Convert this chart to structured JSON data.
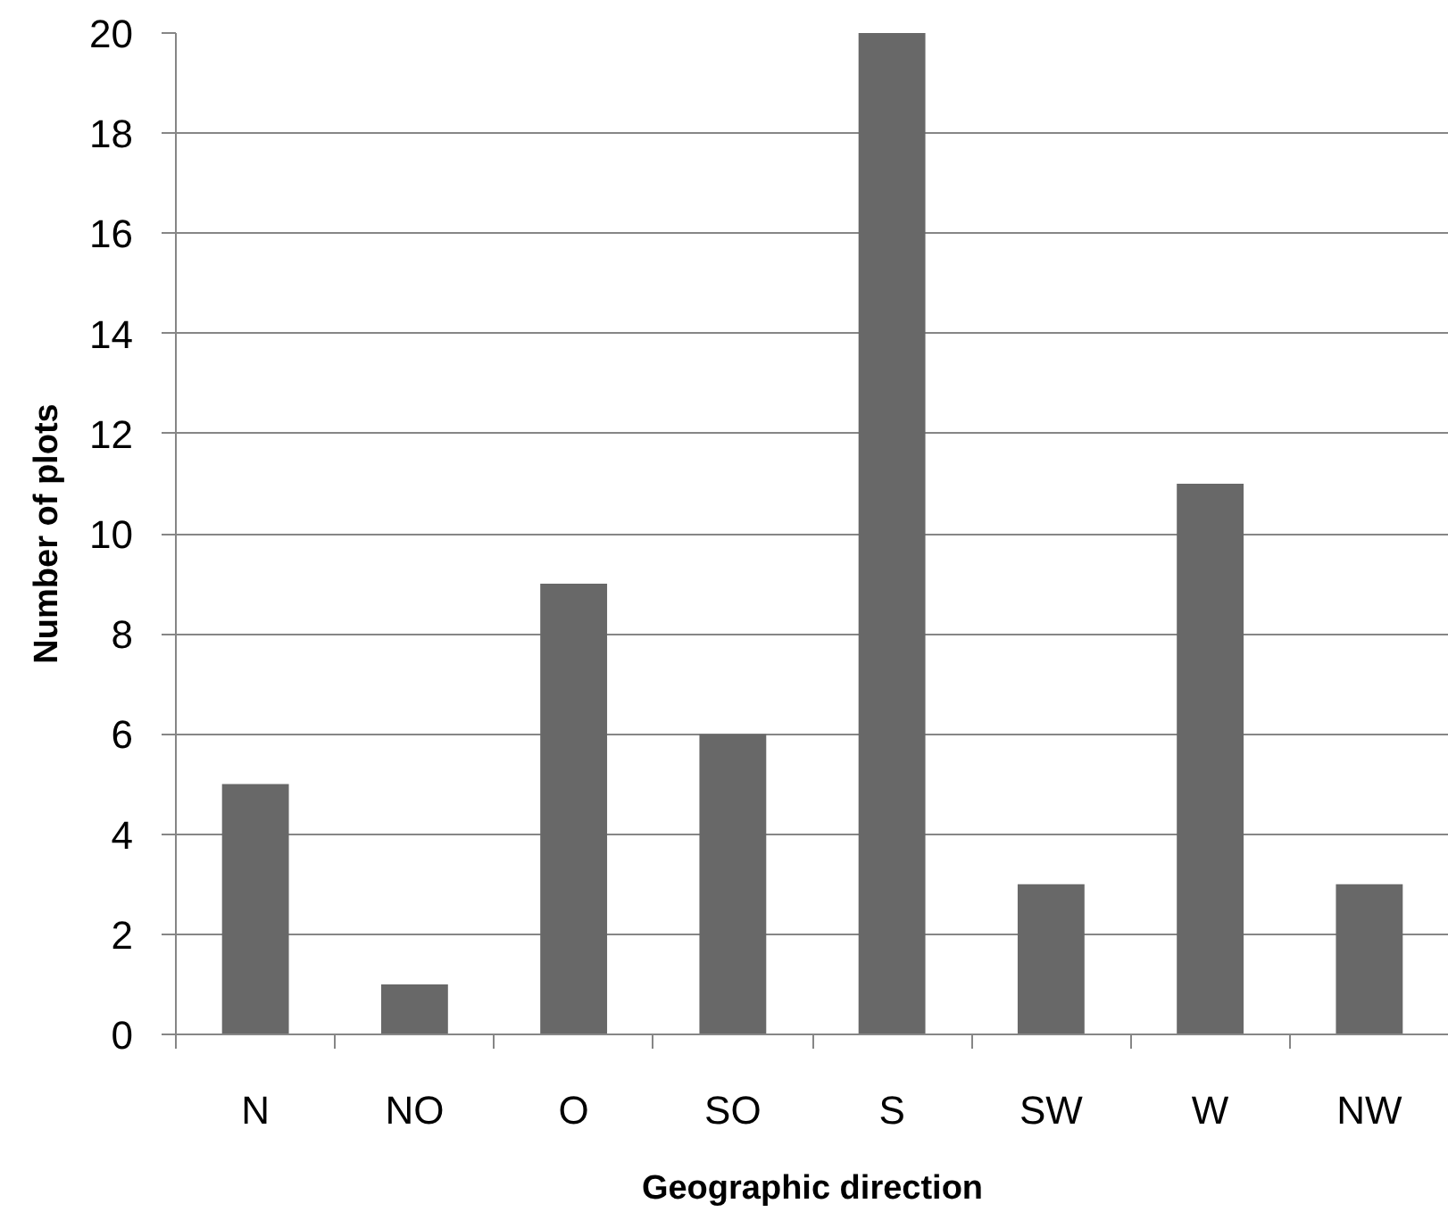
{
  "chart_data": {
    "type": "bar",
    "xlabel": "Geographic direction",
    "ylabel": "Number of plots",
    "categories": [
      "N",
      "NO",
      "O",
      "SO",
      "S",
      "SW",
      "W",
      "NW"
    ],
    "values": [
      5,
      1,
      9,
      6,
      20,
      3,
      11,
      3
    ],
    "color": "#686868",
    "ylim": [
      0,
      20
    ],
    "yticks": [
      0,
      2,
      4,
      6,
      8,
      10,
      12,
      14,
      16,
      18,
      20
    ],
    "grid": "y"
  }
}
